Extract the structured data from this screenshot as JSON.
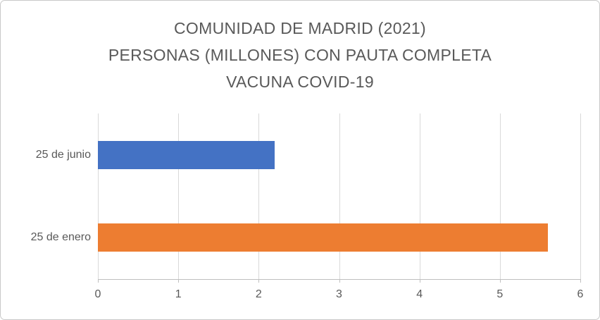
{
  "chart_data": {
    "type": "bar",
    "orientation": "horizontal",
    "title": "COMUNIDAD DE MADRID (2021) PERSONAS (MILLONES) CON PAUTA COMPLETA VACUNA COVID-19",
    "title_lines": [
      "COMUNIDAD DE MADRID (2021)",
      "PERSONAS (MILLONES) CON PAUTA COMPLETA",
      "VACUNA COVID-19"
    ],
    "categories": [
      "25 de junio",
      "25 de enero"
    ],
    "values": [
      2.2,
      5.6
    ],
    "bar_colors": [
      "#4472c4",
      "#ed7d31"
    ],
    "xlim": [
      0,
      6
    ],
    "x_ticks": [
      "0",
      "1",
      "2",
      "3",
      "4",
      "5",
      "6"
    ],
    "xlabel": "",
    "ylabel": "",
    "grid": true,
    "legend": false,
    "colors": {
      "title_text": "#595959",
      "axis_text": "#595959",
      "gridline": "#d9d9d9",
      "axis_line": "#bfbfbf",
      "background": "#ffffff"
    }
  }
}
